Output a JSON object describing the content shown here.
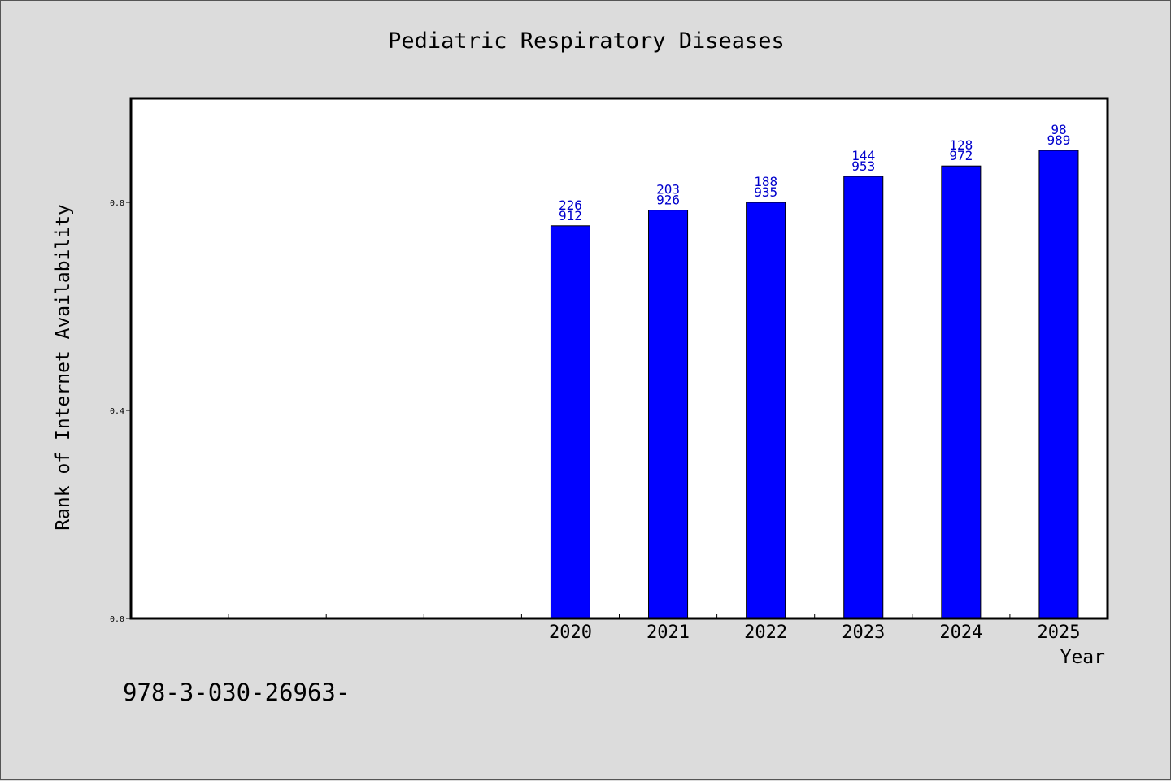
{
  "chart_data": {
    "type": "bar",
    "title": "Pediatric Respiratory Diseases",
    "xlabel": "Year",
    "ylabel": "Rank of Internet Availability",
    "categories": [
      "",
      "",
      "",
      "",
      "2020",
      "2021",
      "2022",
      "2023",
      "2024",
      "2025"
    ],
    "values": [
      null,
      null,
      null,
      null,
      0.755,
      0.785,
      0.8,
      0.85,
      0.87,
      0.9
    ],
    "bar_labels_top": [
      "",
      "",
      "",
      "",
      "226",
      "203",
      "188",
      "144",
      "128",
      "98"
    ],
    "bar_labels_bottom": [
      "",
      "",
      "",
      "",
      "912",
      "926",
      "935",
      "953",
      "972",
      "989"
    ],
    "ylim": [
      0,
      1.0
    ],
    "yticks": [
      0.0,
      0.4,
      0.8
    ],
    "ytick_labels": [
      "0.0",
      "0.4",
      "0.8"
    ],
    "grid": false,
    "bar_color": "#0000ff",
    "label_color": "#0000cc"
  },
  "footer": {
    "code": "978-3-030-26963-"
  }
}
